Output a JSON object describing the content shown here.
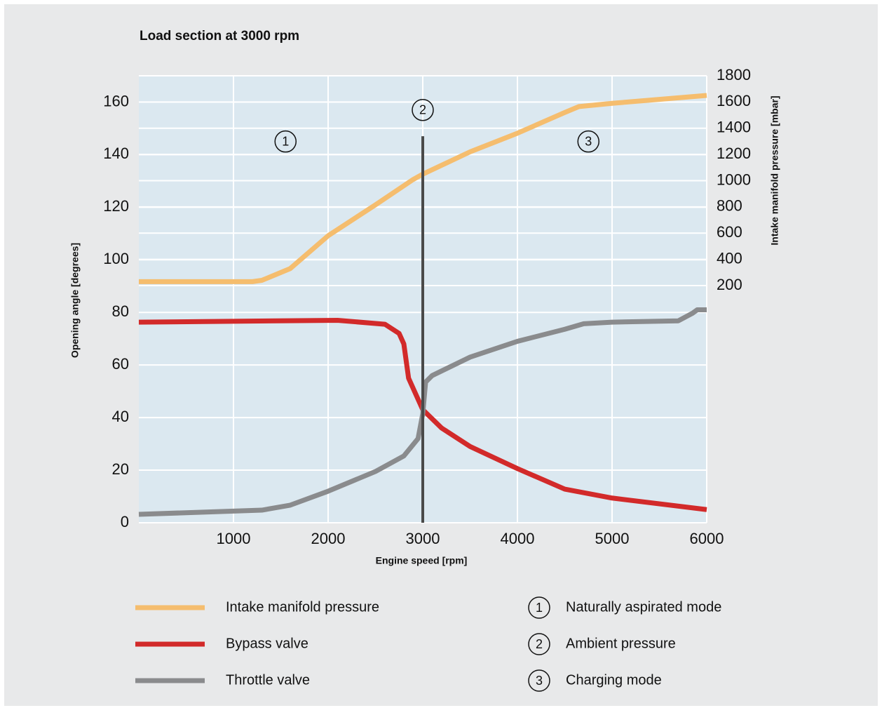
{
  "chart_data": {
    "type": "line",
    "title": "Load section at 3000 rpm",
    "xlabel": "Engine speed [rpm]",
    "ylabel": "Opening angle [degrees]",
    "y2label": "Intake manifold pressure [mbar]",
    "xlim": [
      0,
      6000
    ],
    "xticks": [
      1000,
      2000,
      3000,
      4000,
      5000,
      6000
    ],
    "ylim": [
      0,
      170
    ],
    "yticks": [
      0,
      20,
      40,
      60,
      80,
      100,
      120,
      140,
      160
    ],
    "y2lim": [
      200,
      1800
    ],
    "y2ticks": [
      200,
      400,
      600,
      800,
      1000,
      1200,
      1400,
      1600,
      1800
    ],
    "grid": true,
    "series": [
      {
        "name": "Intake manifold pressure",
        "color": "#f5bd6e",
        "axis": "y2",
        "x": [
          0,
          1200,
          1300,
          1600,
          2000,
          2500,
          2900,
          3000,
          3500,
          4000,
          4500,
          4650,
          5000,
          5500,
          6000
        ],
        "values": [
          230,
          230,
          240,
          330,
          580,
          816,
          1010,
          1050,
          1220,
          1362,
          1520,
          1565,
          1590,
          1620,
          1650
        ]
      },
      {
        "name": "Bypass valve",
        "color": "#d22a2a",
        "x": [
          0,
          2100,
          2600,
          2750,
          2800,
          2850,
          2950,
          3000,
          3200,
          3500,
          4000,
          4500,
          5000,
          6000
        ],
        "values": [
          76.3,
          77,
          75.5,
          72,
          68,
          55,
          47,
          43,
          36,
          29,
          20.6,
          12.8,
          9.4,
          5
        ]
      },
      {
        "name": "Throttle valve",
        "color": "#8a8b8d",
        "x": [
          0,
          1300,
          1600,
          2000,
          2500,
          2800,
          2950,
          3000,
          3030,
          3100,
          3500,
          4000,
          4500,
          4700,
          5000,
          5700,
          5850,
          5900,
          6000
        ],
        "values": [
          3.2,
          4.8,
          6.7,
          12,
          19.5,
          25.4,
          32,
          41.5,
          53.5,
          56,
          63,
          69,
          73.6,
          75.7,
          76.3,
          76.8,
          79.7,
          81,
          81
        ]
      }
    ],
    "vline": {
      "x": 3000,
      "y": [
        0,
        147
      ],
      "color": "#4a4a4a"
    },
    "modes": [
      {
        "label": "1",
        "name": "Naturally aspirated mode",
        "x": 1550,
        "y": 145
      },
      {
        "label": "2",
        "name": "Ambient pressure",
        "x": 3000,
        "y": 157
      },
      {
        "label": "3",
        "name": "Charging mode",
        "x": 4750,
        "y": 145
      }
    ]
  }
}
